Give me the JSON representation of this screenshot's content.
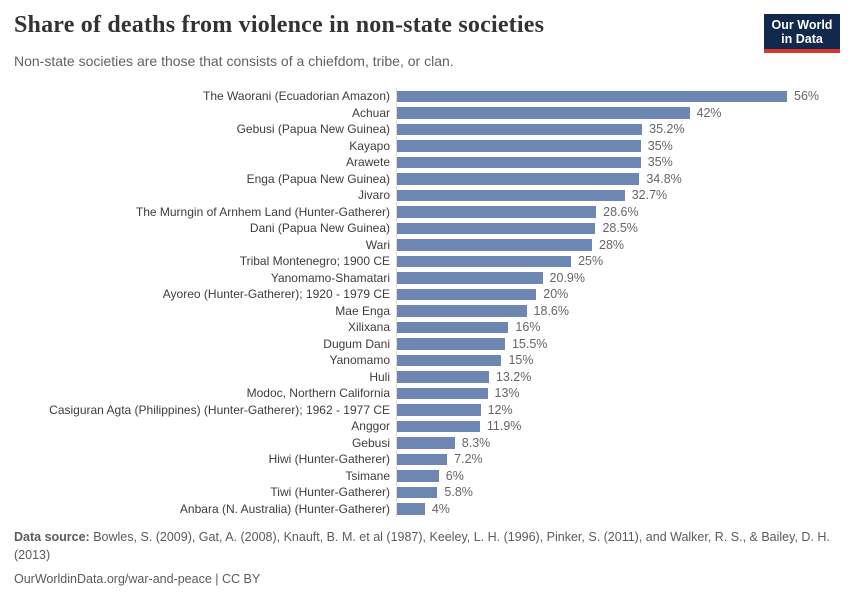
{
  "header": {
    "title": "Share of deaths from violence in non-state societies",
    "subtitle": "Non-state societies are those that consists of a chiefdom, tribe, or clan.",
    "logo": {
      "line1": "Our World",
      "line2": "in Data",
      "bg_color": "#12294e",
      "accent_color": "#d8352e"
    }
  },
  "chart_data": {
    "type": "bar",
    "orientation": "horizontal",
    "title": "Share of deaths from violence in non-state societies",
    "subtitle": "Non-state societies are those that consists of a chiefdom, tribe, or clan.",
    "xlabel": "",
    "ylabel": "",
    "xlim": [
      0,
      56
    ],
    "grid": false,
    "legend": "none",
    "bar_color": "#6e87b2",
    "axis_color": "#dcdcdc",
    "categories": [
      "The Waorani (Ecuadorian Amazon)",
      "Achuar",
      "Gebusi (Papua New Guinea)",
      "Kayapo",
      "Arawete",
      "Enga (Papua New Guinea)",
      "Jivaro",
      "The Murngin of Arnhem Land (Hunter-Gatherer)",
      "Dani (Papua New Guinea)",
      "Wari",
      "Tribal Montenegro; 1900 CE",
      "Yanomamo-Shamatari",
      "Ayoreo (Hunter-Gatherer); 1920 - 1979 CE",
      "Mae Enga",
      "Xilixana",
      "Dugum Dani",
      "Yanomamo",
      "Huli",
      "Modoc, Northern California",
      "Casiguran Agta (Philippines) (Hunter-Gatherer); 1962 - 1977 CE",
      "Anggor",
      "Gebusi",
      "Hiwi (Hunter-Gatherer)",
      "Tsimane",
      "Tiwi (Hunter-Gatherer)",
      "Anbara (N. Australia) (Hunter-Gatherer)"
    ],
    "values": [
      56,
      42,
      35.2,
      35,
      35,
      34.8,
      32.7,
      28.6,
      28.5,
      28,
      25,
      20.9,
      20,
      18.6,
      16,
      15.5,
      15,
      13.2,
      13,
      12,
      11.9,
      8.3,
      7.2,
      6,
      5.8,
      4
    ],
    "value_labels": [
      "56%",
      "42%",
      "35.2%",
      "35%",
      "35%",
      "34.8%",
      "32.7%",
      "28.6%",
      "28.5%",
      "28%",
      "25%",
      "20.9%",
      "20%",
      "18.6%",
      "16%",
      "15.5%",
      "15%",
      "13.2%",
      "13%",
      "12%",
      "11.9%",
      "8.3%",
      "7.2%",
      "6%",
      "5.8%",
      "4%"
    ]
  },
  "footer": {
    "data_source_label": "Data source:",
    "data_source_text": " Bowles, S. (2009), Gat, A. (2008), Knauft, B. M. et al (1987), Keeley, L. H. (1996), Pinker, S. (2011), and Walker, R. S., & Bailey, D. H. (2013)",
    "citation": "OurWorldinData.org/war-and-peace | CC BY"
  }
}
